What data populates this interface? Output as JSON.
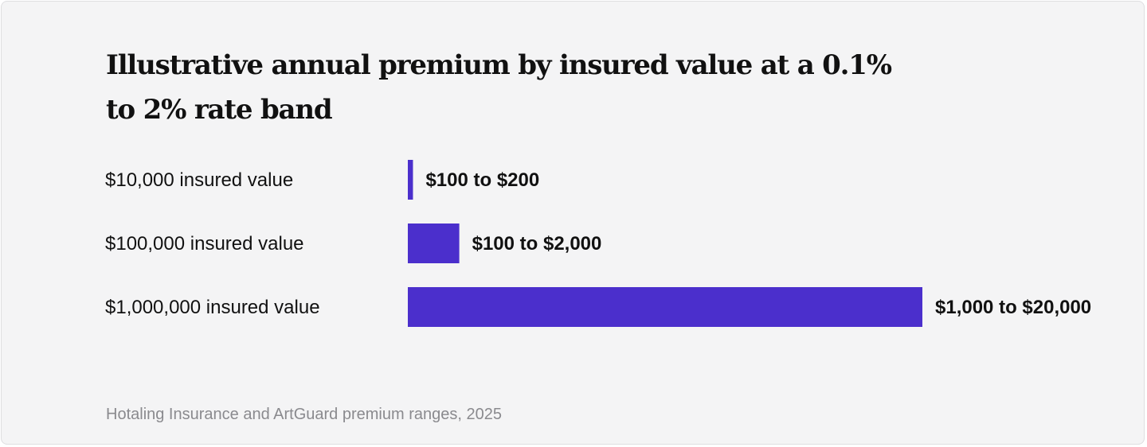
{
  "chart_data": {
    "type": "bar",
    "orientation": "horizontal",
    "title": "Illustrative annual premium by insured value at a 0.1% to 2% rate band",
    "source": "Hotaling Insurance and ArtGuard premium ranges, 2025",
    "categories": [
      "$10,000 insured value",
      "$100,000 insured value",
      "$1,000,000 insured value"
    ],
    "values": [
      200,
      2000,
      20000
    ],
    "value_labels": [
      "$100 to $200",
      "$100 to $2,000",
      "$1,000 to $20,000"
    ],
    "bar_color": "#4b2fcc",
    "grid": false,
    "xlim": [
      0,
      20000
    ]
  }
}
